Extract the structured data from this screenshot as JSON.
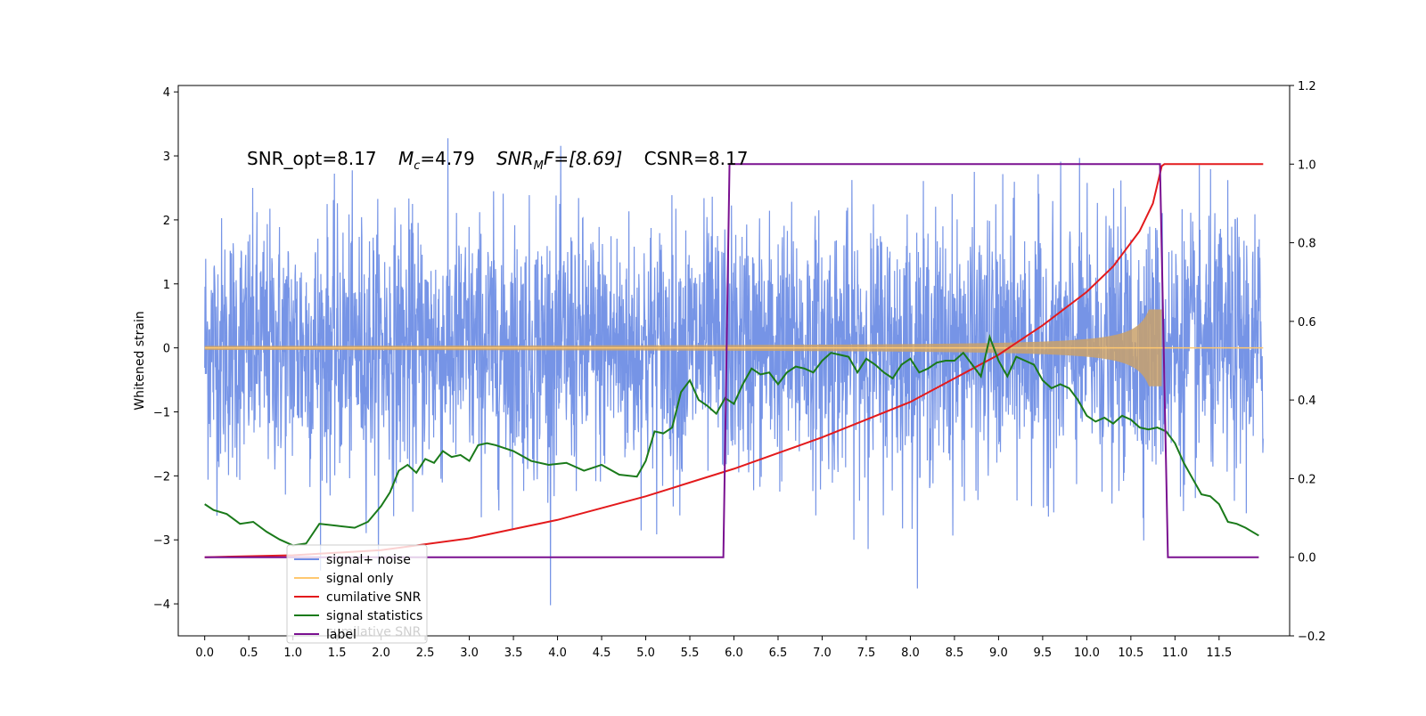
{
  "chart_data": {
    "type": "line",
    "title_text": {
      "snr_opt": "SNR_opt=8.17",
      "mc_label": "M",
      "mc_sub": "c",
      "mc_value": "=4.79",
      "snr_mf_label": "SNR",
      "snr_mf_sub": "M",
      "snr_mf_value": "F=[8.69]",
      "csnr": "CSNR=8.17"
    },
    "ylabel_left": "Whitened strain",
    "x_ticks": [
      "0.0",
      "0.5",
      "1.0",
      "1.5",
      "2.0",
      "2.5",
      "3.0",
      "3.5",
      "4.0",
      "4.5",
      "5.0",
      "5.5",
      "6.0",
      "6.5",
      "7.0",
      "7.5",
      "8.0",
      "8.5",
      "9.0",
      "9.5",
      "10.0",
      "10.5",
      "11.0",
      "11.5"
    ],
    "left_ticks": [
      "4",
      "3",
      "2",
      "1",
      "0",
      "−1",
      "−2",
      "−3",
      "−4"
    ],
    "right_ticks": [
      "1.2",
      "1.0",
      "0.8",
      "0.6",
      "0.4",
      "0.2",
      "0.0",
      "−0.2"
    ],
    "xlim": [
      -0.3,
      12.3
    ],
    "ylim_left": [
      -4.5,
      4.1
    ],
    "ylim_right": [
      -0.2,
      1.2
    ],
    "noise": {
      "x_start": 0.0,
      "x_end": 12.0,
      "amplitude_rms": 1.0,
      "peak_max": 3.7,
      "peak_min": -4.1
    },
    "signal_envelope": {
      "x_start": 0.0,
      "x_end": 10.85,
      "amp_start": 0.02,
      "amp_peak": 0.6
    },
    "legend_position": "lower-left",
    "series": [
      {
        "name": "signal+ noise",
        "color": "#6f8ee5",
        "axis": "left"
      },
      {
        "name": "signal only",
        "color": "#ffc870",
        "axis": "left"
      },
      {
        "name": "cumilative SNR",
        "color": "#e31a1c",
        "axis": "right",
        "x": [
          0,
          1,
          2,
          3,
          4,
          5,
          6,
          7,
          8,
          9,
          9.5,
          10,
          10.3,
          10.6,
          10.75,
          10.85,
          10.88,
          12.0
        ],
        "y": [
          0.0,
          0.005,
          0.018,
          0.048,
          0.095,
          0.155,
          0.225,
          0.305,
          0.395,
          0.515,
          0.59,
          0.675,
          0.74,
          0.83,
          0.9,
          0.995,
          1.0,
          1.0
        ]
      },
      {
        "name": "signal statistics",
        "color": "#1a7a1a",
        "axis": "right",
        "x": [
          0.0,
          0.1,
          0.25,
          0.4,
          0.55,
          0.7,
          0.85,
          1.0,
          1.15,
          1.3,
          1.5,
          1.7,
          1.85,
          2.0,
          2.1,
          2.2,
          2.3,
          2.4,
          2.5,
          2.6,
          2.7,
          2.8,
          2.9,
          3.0,
          3.1,
          3.2,
          3.3,
          3.5,
          3.7,
          3.9,
          4.1,
          4.3,
          4.5,
          4.7,
          4.9,
          5.0,
          5.1,
          5.2,
          5.3,
          5.4,
          5.5,
          5.6,
          5.7,
          5.8,
          5.9,
          6.0,
          6.1,
          6.2,
          6.3,
          6.4,
          6.5,
          6.6,
          6.7,
          6.8,
          6.9,
          7.0,
          7.1,
          7.2,
          7.3,
          7.4,
          7.5,
          7.6,
          7.7,
          7.8,
          7.9,
          8.0,
          8.1,
          8.2,
          8.3,
          8.4,
          8.5,
          8.6,
          8.7,
          8.8,
          8.9,
          9.0,
          9.1,
          9.2,
          9.3,
          9.4,
          9.5,
          9.6,
          9.7,
          9.8,
          9.9,
          10.0,
          10.1,
          10.2,
          10.3,
          10.4,
          10.5,
          10.6,
          10.7,
          10.8,
          10.9,
          11.0,
          11.1,
          11.2,
          11.3,
          11.4,
          11.5,
          11.6,
          11.7,
          11.8,
          11.95
        ],
        "y": [
          0.135,
          0.12,
          0.11,
          0.085,
          0.09,
          0.065,
          0.045,
          0.03,
          0.035,
          0.085,
          0.08,
          0.075,
          0.09,
          0.13,
          0.165,
          0.22,
          0.235,
          0.215,
          0.25,
          0.24,
          0.27,
          0.255,
          0.26,
          0.245,
          0.285,
          0.29,
          0.285,
          0.27,
          0.245,
          0.235,
          0.24,
          0.22,
          0.235,
          0.21,
          0.205,
          0.245,
          0.32,
          0.315,
          0.33,
          0.42,
          0.45,
          0.4,
          0.385,
          0.365,
          0.405,
          0.39,
          0.44,
          0.48,
          0.465,
          0.47,
          0.44,
          0.47,
          0.485,
          0.48,
          0.47,
          0.5,
          0.52,
          0.515,
          0.51,
          0.47,
          0.505,
          0.49,
          0.47,
          0.455,
          0.49,
          0.505,
          0.47,
          0.48,
          0.495,
          0.5,
          0.5,
          0.52,
          0.49,
          0.46,
          0.56,
          0.5,
          0.46,
          0.51,
          0.5,
          0.49,
          0.45,
          0.43,
          0.44,
          0.43,
          0.4,
          0.36,
          0.345,
          0.355,
          0.34,
          0.36,
          0.35,
          0.33,
          0.325,
          0.33,
          0.32,
          0.29,
          0.24,
          0.2,
          0.16,
          0.155,
          0.135,
          0.09,
          0.085,
          0.075,
          0.055
        ]
      },
      {
        "name": "label",
        "color": "#7a1090",
        "axis": "right",
        "x": [
          0.0,
          5.88,
          5.95,
          10.83,
          10.92,
          11.95
        ],
        "y": [
          0.0,
          0.0,
          1.0,
          1.0,
          0.0,
          0.0
        ]
      }
    ],
    "legend_overlap_text": "cumilative SNR"
  }
}
